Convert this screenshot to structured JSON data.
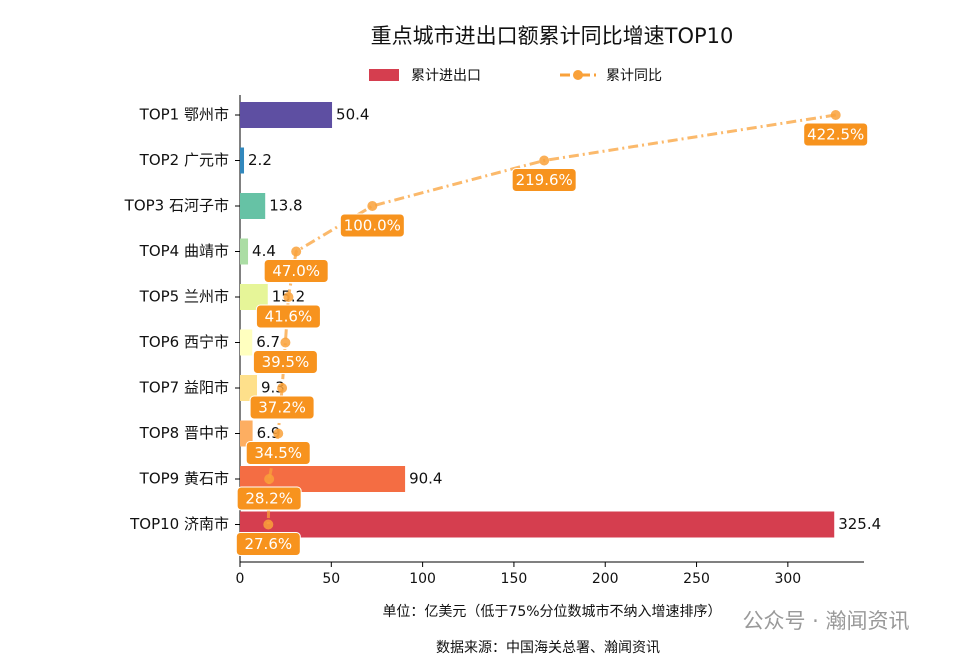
{
  "chart_data": {
    "type": "bar-line",
    "title": "重点城市进出口额累计同比增速TOP10",
    "categories": [
      "TOP1 鄂州市",
      "TOP2 广元市",
      "TOP3 石河子市",
      "TOP4 曲靖市",
      "TOP5 兰州市",
      "TOP6 西宁市",
      "TOP7 益阳市",
      "TOP8 晋中市",
      "TOP9 黄石市",
      "TOP10 济南市"
    ],
    "series": [
      {
        "name": "累计进出口",
        "type": "bar",
        "values": [
          50.4,
          2.2,
          13.8,
          4.4,
          15.2,
          6.7,
          9.3,
          6.9,
          90.4,
          325.4
        ],
        "colors": [
          "#5e4fa2",
          "#3288bd",
          "#66c2a5",
          "#abdda4",
          "#e6f598",
          "#ffffbf",
          "#fee08b",
          "#fdae61",
          "#f46d43",
          "#d53e4f"
        ]
      },
      {
        "name": "累计同比",
        "type": "line",
        "axis": "x2",
        "color": "#f9a13a",
        "label_color": "#f7931e",
        "values": [
          422.5,
          219.6,
          100.0,
          47.0,
          41.6,
          39.5,
          37.2,
          34.5,
          28.2,
          27.6
        ],
        "value_labels": [
          "422.5%",
          "219.6%",
          "100.0%",
          "47.0%",
          "41.6%",
          "39.5%",
          "37.2%",
          "34.5%",
          "28.2%",
          "27.6%"
        ]
      }
    ],
    "xlim": [
      0,
      341.7
    ],
    "xticks": [
      0,
      50,
      100,
      150,
      200,
      250,
      300
    ],
    "x2lim": [
      7.9,
      442.2
    ],
    "xlabel": "单位：亿美元（低于75%分位数城市不纳入增速排序）",
    "source": "数据来源：中国海关总署、瀚闻资讯",
    "watermark": "公众号 · 瀚闻资讯",
    "legend": "top"
  }
}
